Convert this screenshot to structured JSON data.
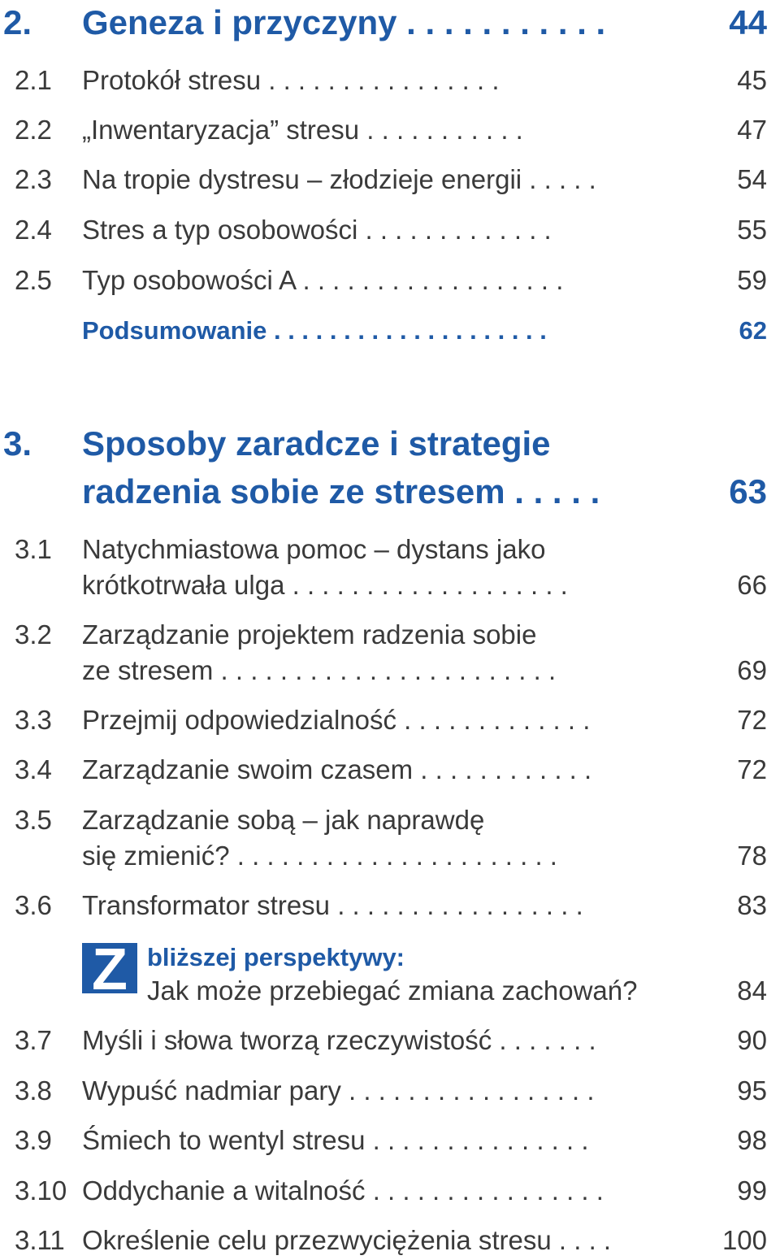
{
  "chapter2": {
    "number": "2.",
    "title": "Geneza i przyczyny . . . . . . . . . . .",
    "page": "44",
    "items": [
      {
        "number": "2.1",
        "title": "Protokół stresu . . . . . . . . . . . . . . . .",
        "page": "45"
      },
      {
        "number": "2.2",
        "title": "„Inwentaryzacja” stresu . . . . . . . . . . .",
        "page": "47"
      },
      {
        "number": "2.3",
        "title": "Na tropie dystresu – złodzieje energii . . . . .",
        "page": "54"
      },
      {
        "number": "2.4",
        "title": "Stres a typ osobowości . . . . . . . . . . . . .",
        "page": "55"
      },
      {
        "number": "2.5",
        "title": "Typ osobowości A . . . . . . . . . . . . . . . . . .",
        "page": "59"
      }
    ],
    "summary": {
      "title": "Podsumowanie . . . . . . . . . . . . . . . . . . . .",
      "page": "62"
    }
  },
  "chapter3": {
    "number": "3.",
    "title_line1": "Sposoby zaradcze i strategie",
    "title_line2": "radzenia sobie ze stresem . . . . .",
    "page": "63",
    "items": [
      {
        "number": "3.1",
        "line1": "Natychmiastowa pomoc – dystans jako",
        "line2": "krótkotrwała ulga . . . . . . . . . . . . . . . . . . .",
        "page": "66"
      },
      {
        "number": "3.2",
        "line1": "Zarządzanie projektem radzenia sobie",
        "line2": "ze stresem . . . . . . . . . . . . . . . . . . . . . . .",
        "page": "69"
      },
      {
        "number": "3.3",
        "title": "Przejmij odpowiedzialność . . . . . . . . . . . . .",
        "page": "72"
      },
      {
        "number": "3.4",
        "title": "Zarządzanie swoim czasem . . . . . . . . . . . .",
        "page": "72"
      },
      {
        "number": "3.5",
        "line1": "Zarządzanie sobą – jak naprawdę",
        "line2": "się zmienić? . . . . . . . . . . . . . . . . . . . . . .",
        "page": "78"
      },
      {
        "number": "3.6",
        "title": "Transformator stresu . . . . . . . . . . . . . . . . .",
        "page": "83"
      }
    ],
    "special": {
      "logo_letter": "Z",
      "heading": "bliższej perspektywy:",
      "subtitle": "Jak może przebiegać zmiana zachowań?",
      "page": "84"
    },
    "items_after": [
      {
        "number": "3.7",
        "title": "Myśli i słowa tworzą rzeczywistość . . . . . . .",
        "page": "90"
      },
      {
        "number": "3.8",
        "title": "Wypuść nadmiar pary . . . . . . . . . . . . . . . . .",
        "page": "95"
      },
      {
        "number": "3.9",
        "title": "Śmiech to wentyl stresu . . . . . . . . . . . . . . .",
        "page": "98"
      },
      {
        "number": "3.10",
        "title": "Oddychanie a witalność . . . . . . . . . . . . . . . .",
        "page": "99"
      },
      {
        "number": "3.11",
        "title": "Określenie celu przezwyciężenia stresu . . . .",
        "page": "100"
      }
    ]
  },
  "colors": {
    "accent": "#1f5aa6",
    "text": "#3a3a3a"
  }
}
